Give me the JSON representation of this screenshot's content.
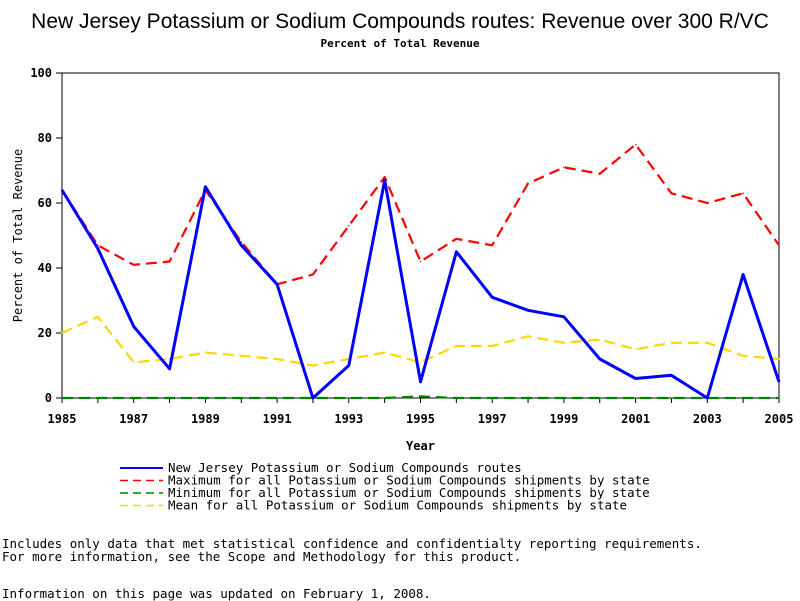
{
  "chart_data": {
    "type": "line",
    "title": "New Jersey Potassium or Sodium Compounds routes: Revenue over 300 R/VC",
    "subtitle": "Percent of Total Revenue",
    "xlabel": "Year",
    "ylabel": "Percent of Total Revenue",
    "xlim": [
      1985,
      2005
    ],
    "ylim": [
      0,
      100
    ],
    "x": [
      1985,
      1986,
      1987,
      1988,
      1989,
      1990,
      1991,
      1992,
      1993,
      1994,
      1995,
      1996,
      1997,
      1998,
      1999,
      2000,
      2001,
      2002,
      2003,
      2004,
      2005
    ],
    "x_ticks": [
      "1985",
      "1987",
      "1989",
      "1991",
      "1993",
      "1995",
      "1997",
      "1999",
      "2001",
      "2003",
      "2005"
    ],
    "y_ticks": [
      "0",
      "20",
      "40",
      "60",
      "80",
      "100"
    ],
    "series": [
      {
        "name": "New Jersey Potassium or Sodium Compounds routes",
        "color": "#0000ff",
        "dash": "solid",
        "values": [
          64,
          46,
          22,
          9,
          65,
          47,
          35,
          0,
          10,
          67,
          5,
          45,
          31,
          27,
          25,
          12,
          6,
          7,
          0,
          38,
          5
        ]
      },
      {
        "name": "Maximum for all Potassium or Sodium Compounds shipments by state",
        "color": "#ff0000",
        "dash": "dashed",
        "values": [
          64,
          47,
          41,
          42,
          64,
          48,
          35,
          38,
          53,
          68,
          42,
          49,
          47,
          66,
          71,
          69,
          78,
          63,
          60,
          63,
          47
        ]
      },
      {
        "name": "Minimum for all Potassium or Sodium Compounds shipments by state",
        "color": "#008000",
        "dash": "dashed",
        "values": [
          0,
          0,
          0,
          0,
          0,
          0,
          0,
          0,
          0,
          0,
          0.5,
          0,
          0,
          0,
          0,
          0,
          0,
          0,
          0,
          0,
          0
        ]
      },
      {
        "name": "Mean for all Potassium or Sodium Compounds shipments by state",
        "color": "#ffd700",
        "dash": "dashed",
        "values": [
          20,
          25,
          11,
          12,
          14,
          13,
          12,
          10,
          12,
          14,
          11,
          16,
          16,
          19,
          17,
          18,
          15,
          17,
          17,
          13,
          12
        ]
      }
    ]
  },
  "notes": {
    "line1": "Includes only data that met statistical confidence and confidentialty reporting requirements.",
    "line2": "For more information, see the Scope and Methodology for this product.",
    "line3": "Information on this page was updated on February 1, 2008."
  }
}
